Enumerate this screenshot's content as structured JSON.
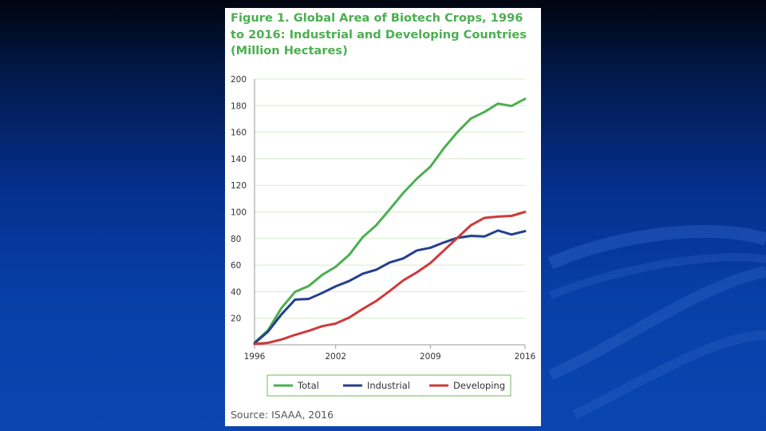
{
  "slide": {
    "background_gradient": [
      "#000510",
      "#0a45b0"
    ]
  },
  "figure": {
    "title_lines": [
      "Figure 1. Global Area of Biotech Crops, 1996",
      "to 2016: Industrial and Developing Countries",
      "(Million Hectares)"
    ],
    "source": "Source: ISAAA, 2016",
    "title_color": "#4caf50"
  },
  "chart_data": {
    "type": "line",
    "title": "Figure 1. Global Area of Biotech Crops, 1996 to 2016: Industrial and Developing Countries (Million Hectares)",
    "xlabel": "",
    "ylabel": "",
    "x": [
      1996,
      1997,
      1998,
      1999,
      2000,
      2001,
      2002,
      2003,
      2004,
      2005,
      2006,
      2007,
      2008,
      2009,
      2010,
      2011,
      2012,
      2013,
      2014,
      2015,
      2016
    ],
    "xlim": [
      1996,
      2016
    ],
    "ylim": [
      0,
      200
    ],
    "xticks": [
      "1996",
      "2002",
      "2009",
      "2016"
    ],
    "yticks": [
      "20",
      "40",
      "60",
      "80",
      "100",
      "120",
      "140",
      "160",
      "180",
      "200"
    ],
    "grid": "horizontal",
    "legend_position": "bottom",
    "series": [
      {
        "name": "Total",
        "color": "#4caf50",
        "values": [
          1.7,
          11,
          27.8,
          39.9,
          44.2,
          52.6,
          58.7,
          67.7,
          81,
          90,
          102,
          114.3,
          125,
          134,
          148,
          160,
          170.3,
          175.2,
          181.5,
          179.7,
          185.1
        ]
      },
      {
        "name": "Industrial",
        "color": "#243f8f",
        "values": [
          1.1,
          10,
          23,
          34,
          34.5,
          39,
          44,
          48,
          53.5,
          56.5,
          62,
          65,
          71,
          73,
          77,
          80.5,
          82,
          81.5,
          86,
          83,
          85.5
        ]
      },
      {
        "name": "Developing",
        "color": "#d0393a",
        "values": [
          0.6,
          1.5,
          4,
          7.5,
          10.5,
          14,
          16,
          20.5,
          27,
          33,
          40.5,
          48.5,
          54.5,
          61.5,
          71,
          80.5,
          90,
          95.5,
          96.5,
          97,
          100
        ]
      }
    ]
  }
}
